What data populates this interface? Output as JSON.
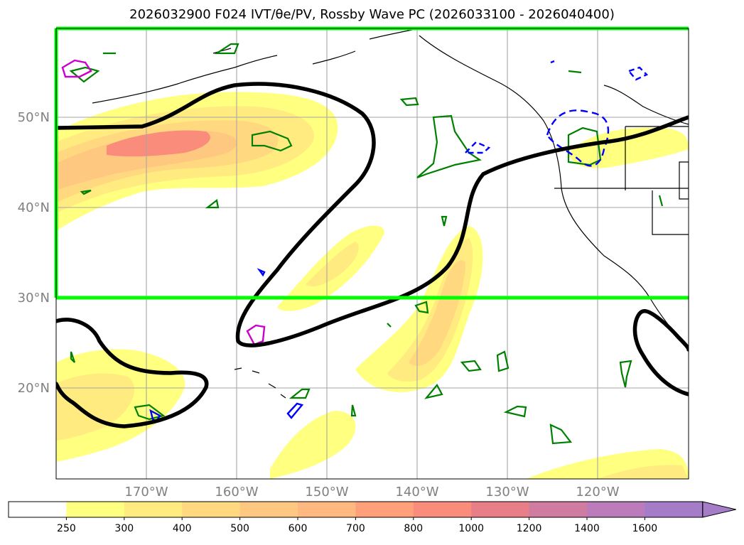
{
  "title": "2026032900 F024 IVT/θe/PV, Rossby Wave PC (2026033100 - 2026040400)",
  "lat_labels": [
    "50°N",
    "40°N",
    "30°N",
    "20°N"
  ],
  "lon_labels": [
    "170°W",
    "160°W",
    "150°W",
    "140°W",
    "130°W",
    "120°W"
  ],
  "colorbar": {
    "levels": [
      "250",
      "300",
      "400",
      "500",
      "600",
      "700",
      "800",
      "1000",
      "1200",
      "1400",
      "1600"
    ],
    "colors": [
      "#ffffff",
      "#ffff80",
      "#ffeb80",
      "#ffd880",
      "#ffc880",
      "#ffb880",
      "#ffa07a",
      "#fa8c7c",
      "#e87f88",
      "#d07ca0",
      "#bc7cbc",
      "#a47cc8"
    ]
  },
  "colors": {
    "green_box": "#00ff00",
    "rossby_contour": "#000000",
    "pv_contour": "#008000",
    "theta_e_contour": "#0000ff",
    "magenta_contour": "#cc00cc"
  }
}
